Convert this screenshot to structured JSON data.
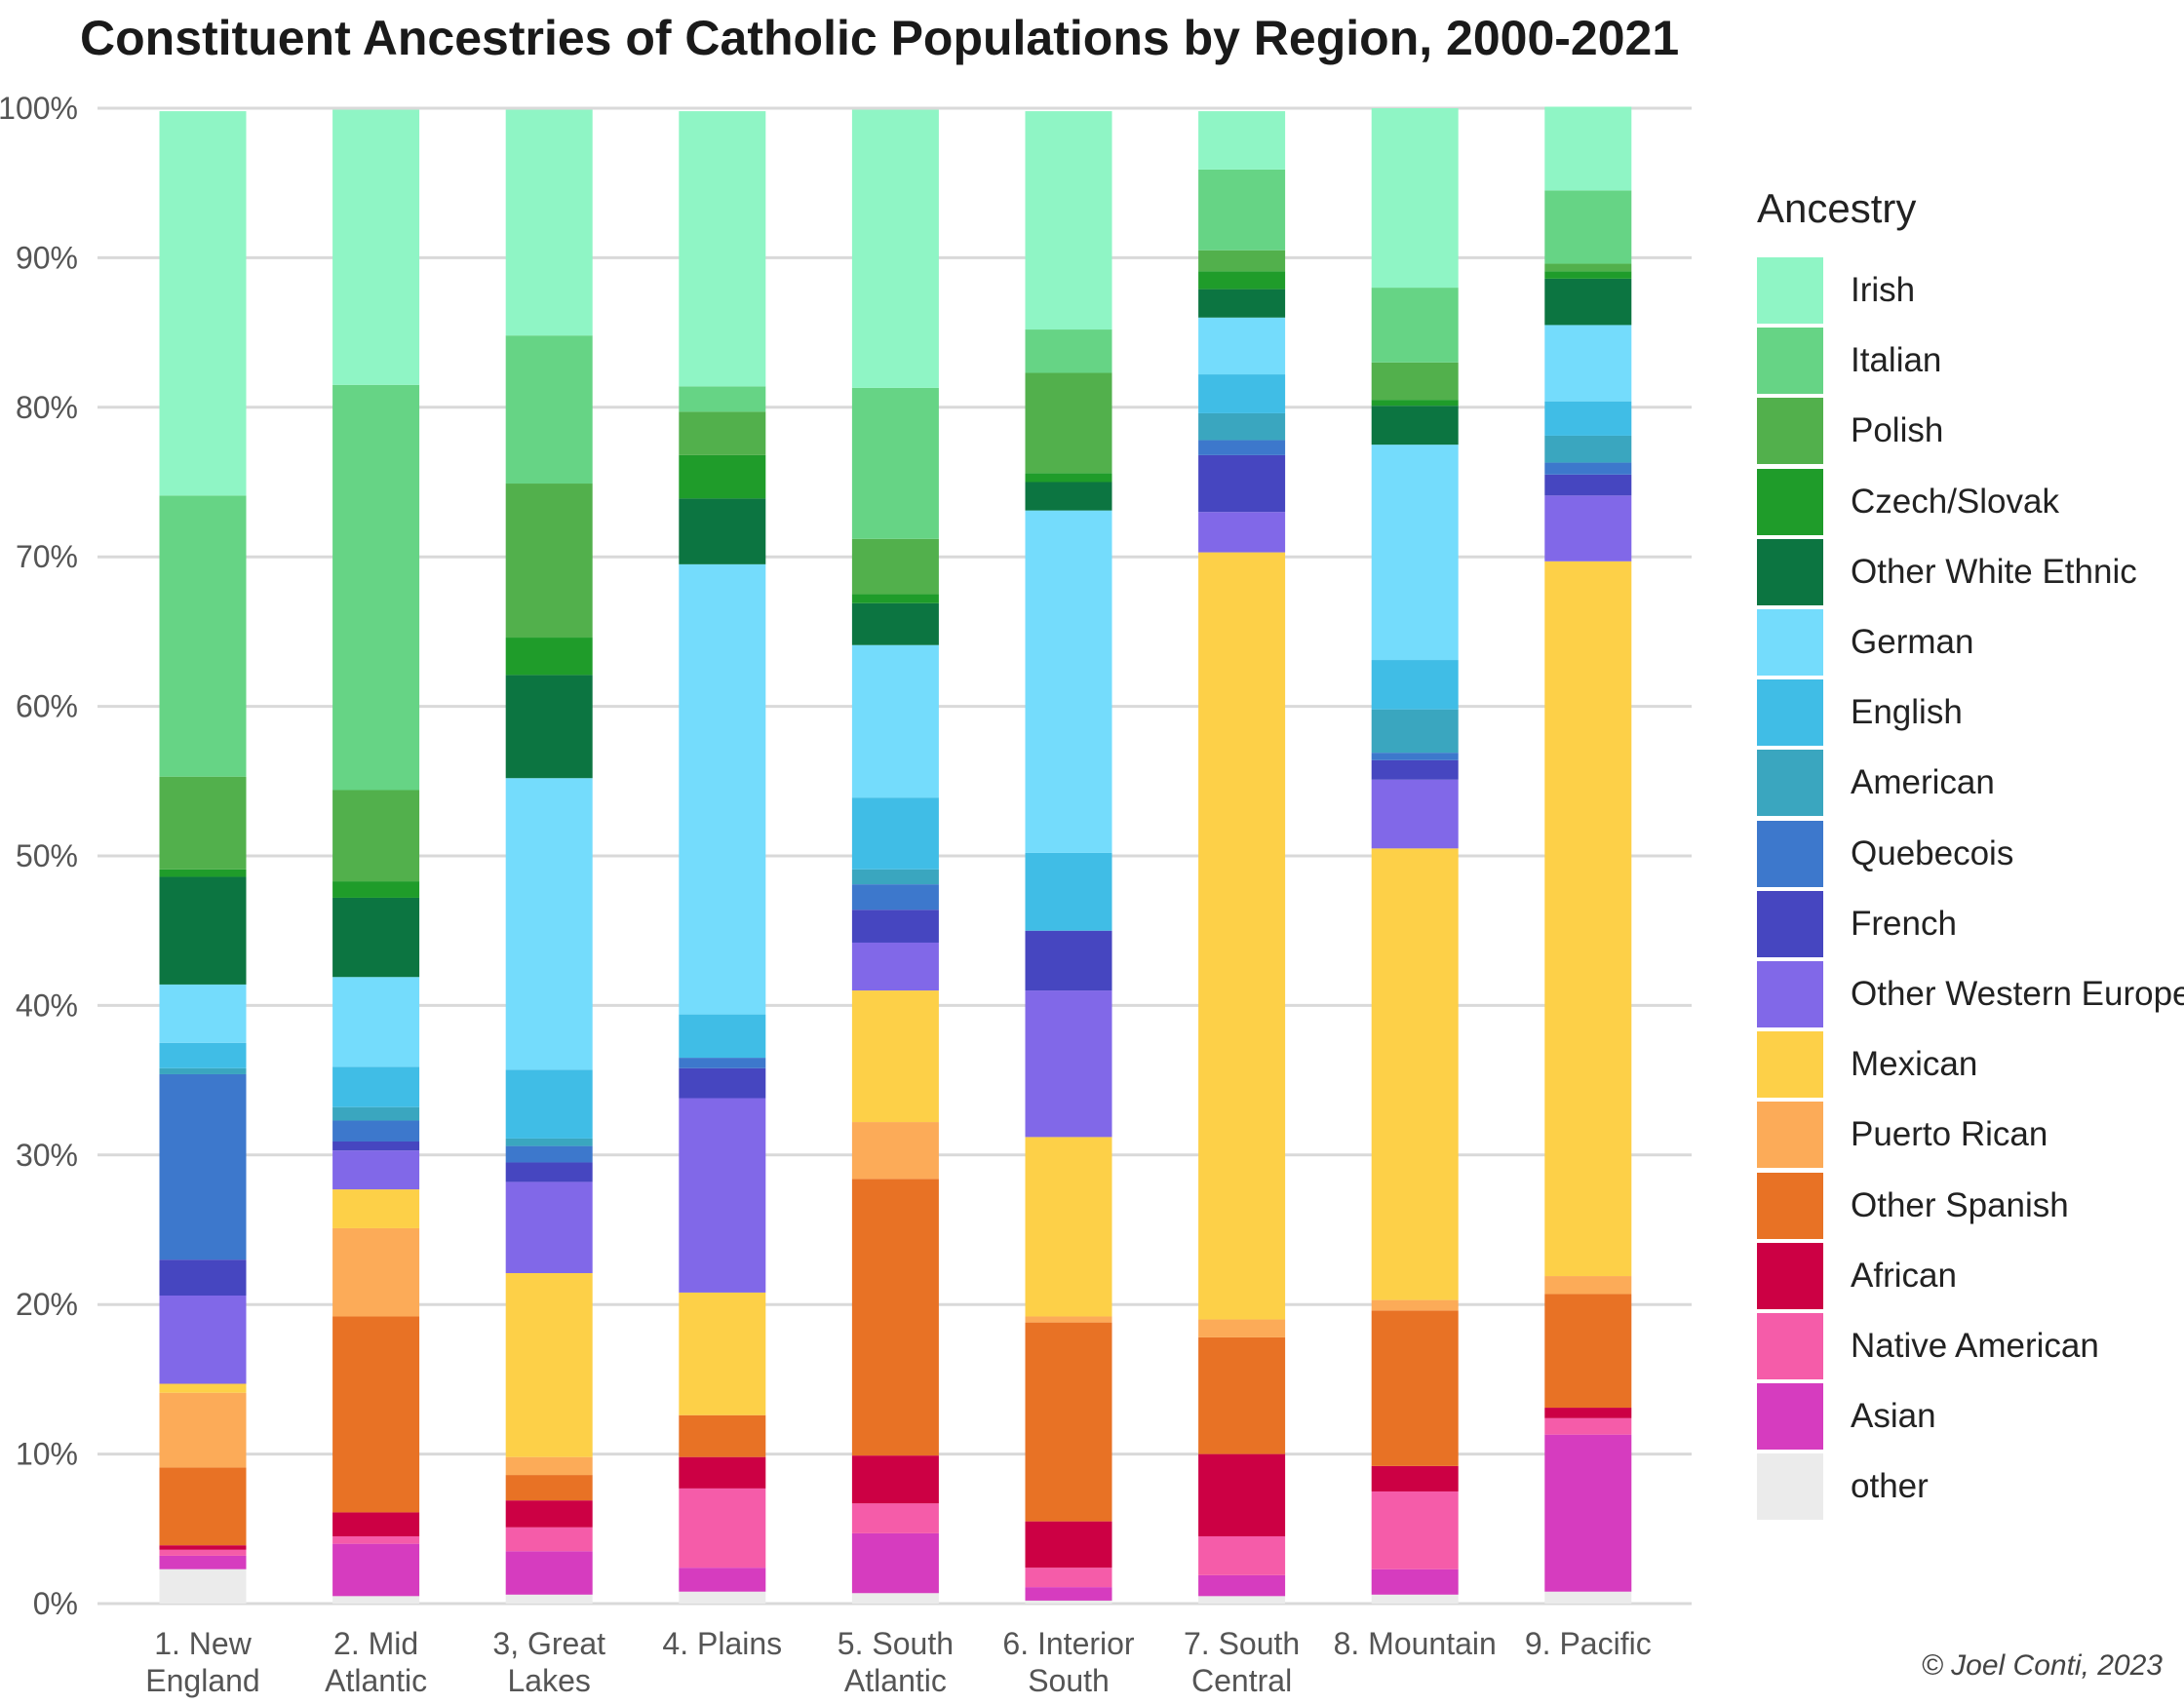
{
  "chart_data": {
    "type": "bar",
    "stacked": true,
    "title": "Constituent Ancestries of Catholic Populations by Region, 2000-2021",
    "xlabel": "",
    "ylabel": "",
    "ylim": [
      0,
      100
    ],
    "yticks": [
      "0%",
      "10%",
      "20%",
      "30%",
      "40%",
      "50%",
      "60%",
      "70%",
      "80%",
      "90%",
      "100%"
    ],
    "grid": true,
    "legend_title": "Ancestry",
    "legend_position": "right",
    "categories": [
      [
        "1. New",
        "England"
      ],
      [
        "2. Mid",
        "Atlantic"
      ],
      [
        "3, Great",
        "Lakes"
      ],
      [
        "4. Plains"
      ],
      [
        "5. South",
        "Atlantic"
      ],
      [
        "6. Interior",
        "South"
      ],
      [
        "7. South",
        "Central"
      ],
      [
        "8. Mountain"
      ],
      [
        "9. Pacific"
      ]
    ],
    "series": [
      {
        "name": "other",
        "color": "#ebebeb",
        "values": [
          2.3,
          0.5,
          0.6,
          0.8,
          0.7,
          0.2,
          0.5,
          0.6,
          0.8
        ]
      },
      {
        "name": "Asian",
        "color": "#d63cbf",
        "values": [
          0.9,
          3.5,
          2.9,
          1.6,
          4.0,
          0.9,
          1.4,
          1.7,
          10.5
        ]
      },
      {
        "name": "Native American",
        "color": "#f55ca9",
        "values": [
          0.4,
          0.5,
          1.6,
          5.3,
          2.0,
          1.3,
          2.6,
          5.2,
          1.1
        ]
      },
      {
        "name": "African",
        "color": "#cc0044",
        "values": [
          0.3,
          1.6,
          1.8,
          2.1,
          3.2,
          3.1,
          5.5,
          1.7,
          0.7
        ]
      },
      {
        "name": "Other Spanish",
        "color": "#e87225",
        "values": [
          5.2,
          13.1,
          1.7,
          2.8,
          18.5,
          13.3,
          7.8,
          10.4,
          7.6
        ]
      },
      {
        "name": "Puerto Rican",
        "color": "#fcab58",
        "values": [
          5.0,
          5.9,
          1.2,
          0,
          3.8,
          0.4,
          1.2,
          0.7,
          1.2
        ]
      },
      {
        "name": "Mexican",
        "color": "#fdd048",
        "values": [
          0.6,
          2.6,
          12.3,
          8.2,
          8.8,
          12.0,
          51.3,
          30.2,
          47.8
        ]
      },
      {
        "name": "Other Western Europe",
        "color": "#8168e8",
        "values": [
          5.9,
          2.6,
          6.1,
          13.0,
          3.2,
          9.8,
          2.7,
          4.6,
          4.4
        ]
      },
      {
        "name": "French",
        "color": "#4646c0",
        "values": [
          2.4,
          0.6,
          1.3,
          2.0,
          2.2,
          4.0,
          3.8,
          1.3,
          1.4
        ]
      },
      {
        "name": "Quebecois",
        "color": "#3d78cc",
        "values": [
          12.4,
          1.4,
          1.1,
          0.7,
          1.7,
          0,
          1.0,
          0.5,
          0.8
        ]
      },
      {
        "name": "American",
        "color": "#3aa6bf",
        "values": [
          0.4,
          0.9,
          0.5,
          0,
          1.0,
          0,
          1.8,
          2.9,
          1.8
        ]
      },
      {
        "name": "English",
        "color": "#40bde6",
        "values": [
          1.7,
          2.7,
          4.6,
          2.9,
          4.8,
          5.2,
          2.6,
          3.3,
          2.3
        ]
      },
      {
        "name": "German",
        "color": "#74dcfc",
        "values": [
          3.9,
          6.0,
          19.5,
          30.1,
          10.2,
          22.9,
          3.8,
          14.4,
          5.1
        ]
      },
      {
        "name": "Other White Ethnic",
        "color": "#0c7541",
        "values": [
          7.2,
          5.3,
          6.9,
          4.4,
          2.8,
          1.9,
          1.9,
          2.6,
          3.1
        ]
      },
      {
        "name": "Czech/Slovak",
        "color": "#1f9c2a",
        "values": [
          0.5,
          1.1,
          2.5,
          2.9,
          0.6,
          0.6,
          1.2,
          0.4,
          0.5
        ]
      },
      {
        "name": "Polish",
        "color": "#52b04c",
        "values": [
          6.2,
          6.1,
          10.3,
          2.9,
          3.7,
          6.7,
          1.4,
          2.5,
          0.5
        ]
      },
      {
        "name": "Italian",
        "color": "#66d485",
        "values": [
          18.8,
          27.1,
          9.9,
          1.7,
          10.1,
          2.9,
          5.4,
          5.0,
          4.9
        ]
      },
      {
        "name": "Irish",
        "color": "#8ff5c5",
        "values": [
          25.7,
          18.4,
          15.1,
          18.4,
          18.6,
          14.6,
          3.9,
          12.0,
          5.6
        ]
      }
    ]
  },
  "credit": "© Joel Conti, 2023"
}
